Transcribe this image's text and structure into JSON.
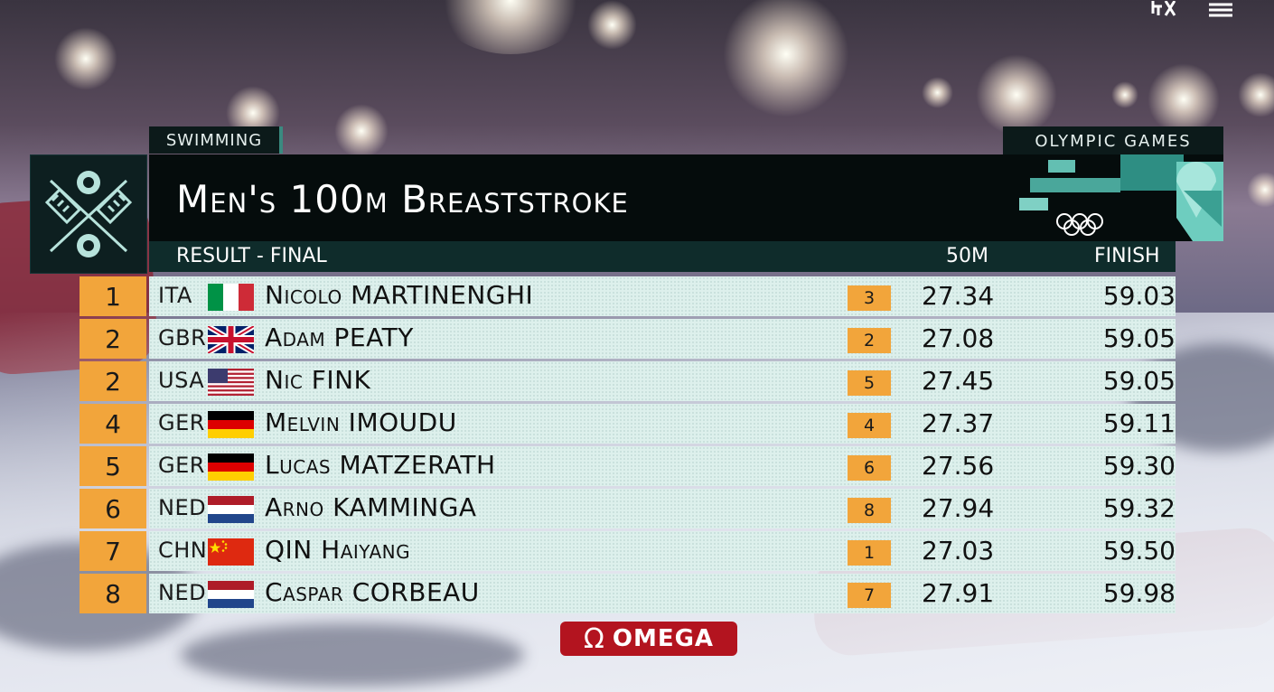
{
  "header": {
    "category": "SWIMMING",
    "event": "Men's 100m Breaststroke",
    "brand": "OLYMPIC GAMES",
    "round": "RESULT - FINAL",
    "col_split": "50M",
    "col_finish": "FINISH"
  },
  "results": [
    {
      "rank": "1",
      "nat": "ITA",
      "flag": "italy-flag",
      "name": "Nicolo MARTINENGHI",
      "split_rank": "3",
      "split": "27.34",
      "finish": "59.03"
    },
    {
      "rank": "2",
      "nat": "GBR",
      "flag": "uk-flag",
      "name": "Adam PEATY",
      "split_rank": "2",
      "split": "27.08",
      "finish": "59.05"
    },
    {
      "rank": "2",
      "nat": "USA",
      "flag": "usa-flag",
      "name": "Nic FINK",
      "split_rank": "5",
      "split": "27.45",
      "finish": "59.05"
    },
    {
      "rank": "4",
      "nat": "GER",
      "flag": "germany-flag",
      "name": "Melvin IMOUDU",
      "split_rank": "4",
      "split": "27.37",
      "finish": "59.11"
    },
    {
      "rank": "5",
      "nat": "GER",
      "flag": "germany-flag",
      "name": "Lucas MATZERATH",
      "split_rank": "6",
      "split": "27.56",
      "finish": "59.30"
    },
    {
      "rank": "6",
      "nat": "NED",
      "flag": "netherlands-flag",
      "name": "Arno KAMMINGA",
      "split_rank": "8",
      "split": "27.94",
      "finish": "59.32"
    },
    {
      "rank": "7",
      "nat": "CHN",
      "flag": "china-flag",
      "name": "QIN Haiyang",
      "split_rank": "1",
      "split": "27.03",
      "finish": "59.50"
    },
    {
      "rank": "8",
      "nat": "NED",
      "flag": "netherlands-flag",
      "name": "Caspar CORBEAU",
      "split_rank": "7",
      "split": "27.91",
      "finish": "59.98"
    }
  ],
  "sponsor": "OMEGA",
  "omega_symbol": "Ω",
  "overlay_icons": [
    "corner-glyph-icon",
    "menu-icon"
  ],
  "colors": {
    "rank_bg": "#f2a53b",
    "row_bg": "#ddf0ec",
    "header_bg": "#050c0c",
    "accent": "#3a8a80",
    "omega_red": "#b3141f"
  }
}
